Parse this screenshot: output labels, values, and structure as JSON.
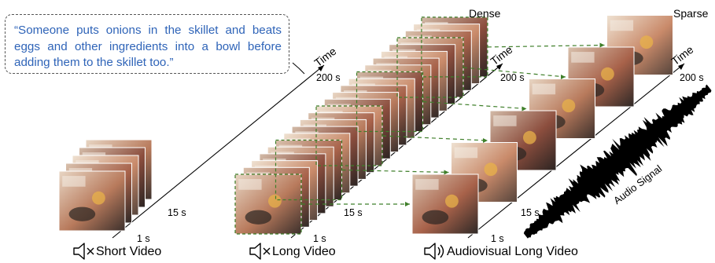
{
  "caption": "“Someone puts onions in the skillet and beats eggs and other ingredients into a bowl before adding them to the skillet too.”",
  "axis": {
    "time_label": "Time",
    "tick_200s": "200 s",
    "tick_15s": "15 s",
    "tick_1s": "1 s"
  },
  "labels": {
    "dense": "Dense",
    "sparse": "Sparse",
    "audio_signal": "Audio Signal"
  },
  "panels": [
    {
      "caption": "Short Video",
      "audio_icon": "speaker-muted-icon"
    },
    {
      "caption": "Long Video",
      "audio_icon": "speaker-muted-icon"
    },
    {
      "caption": "Audiovisual Long Video",
      "audio_icon": "speaker-sound-icon"
    }
  ],
  "colors": {
    "caption_text": "#2f64b8",
    "dashed_link": "#3f7f2a",
    "axis": "#000000",
    "frame_warm": "#b86f52",
    "frame_dark": "#3a2f2c"
  }
}
